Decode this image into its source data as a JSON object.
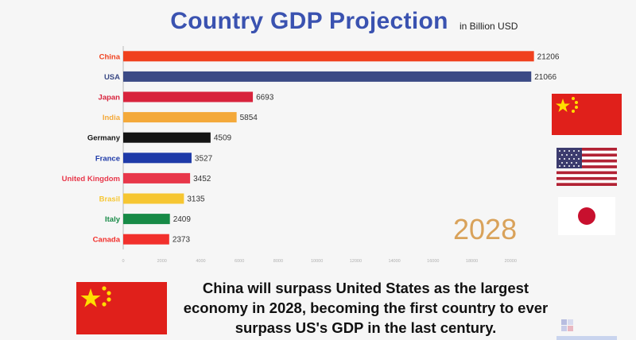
{
  "title": "Country GDP Projection",
  "units_note": "in Billion USD",
  "year": "2028",
  "caption": "China will surpass United States as the largest economy in 2028, becoming the first country to ever surpass US's GDP in the last century.",
  "flags": [
    "china-flag",
    "usa-flag",
    "japan-flag",
    "china-flag-large"
  ],
  "chart_data": {
    "type": "bar",
    "orientation": "horizontal",
    "categories": [
      "China",
      "USA",
      "Japan",
      "India",
      "Germany",
      "France",
      "United Kingdom",
      "Brasil",
      "Italy",
      "Canada"
    ],
    "values": [
      21206,
      21066,
      6693,
      5854,
      4509,
      3527,
      3452,
      3135,
      2409,
      2373
    ],
    "colors": [
      "#f0411e",
      "#3b4a85",
      "#d8233c",
      "#f4a93a",
      "#141414",
      "#1e3aa8",
      "#e8374a",
      "#f6c632",
      "#178a46",
      "#f2302c"
    ],
    "xlim": [
      0,
      22000
    ],
    "xticks": [
      0,
      2000,
      4000,
      6000,
      8000,
      10000,
      12000,
      14000,
      16000,
      18000,
      20000
    ],
    "grid": false
  }
}
